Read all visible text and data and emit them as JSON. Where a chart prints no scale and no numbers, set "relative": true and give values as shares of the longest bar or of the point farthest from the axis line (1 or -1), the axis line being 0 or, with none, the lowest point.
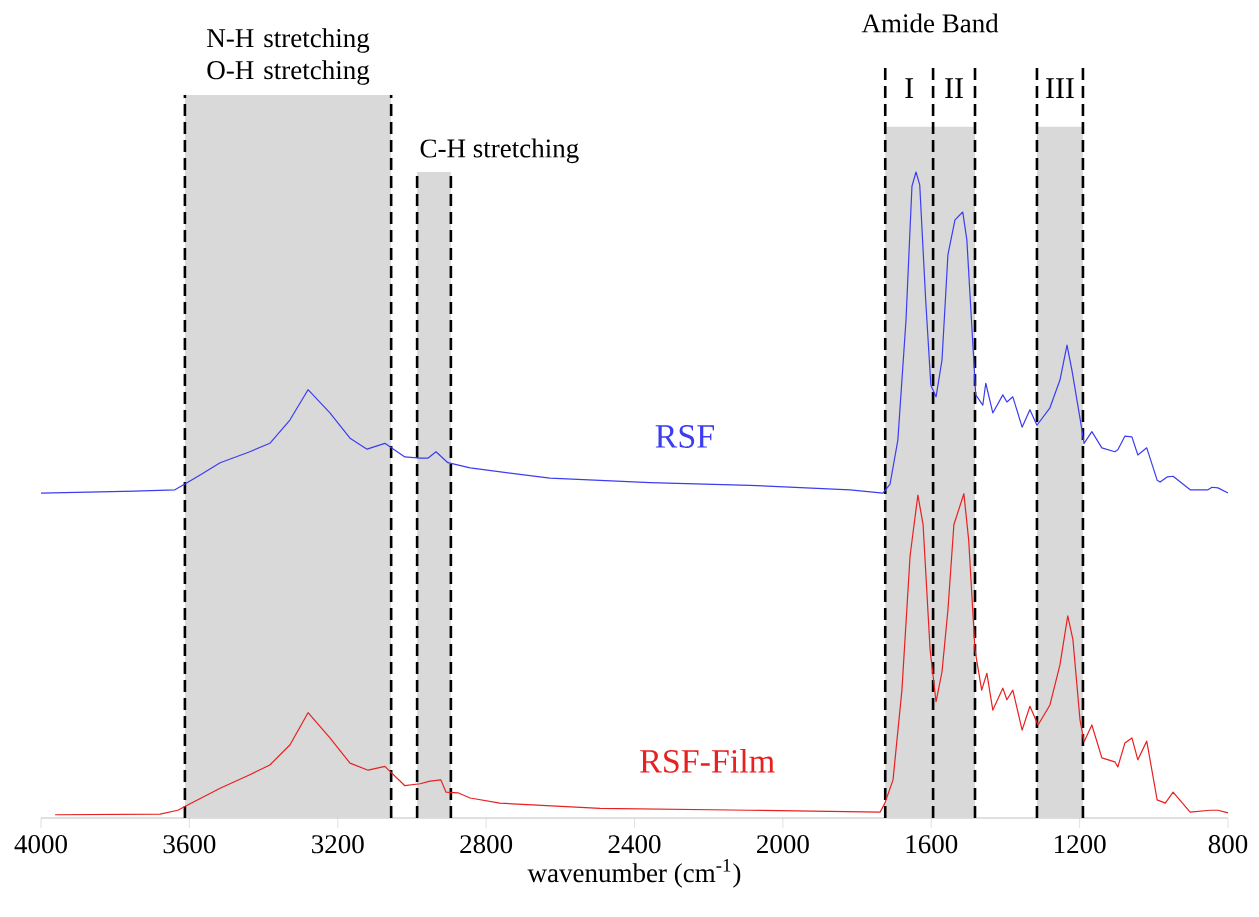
{
  "chart_data": {
    "type": "line",
    "relative": true,
    "xlabel": "wavenumber (cm$^{-1}$)",
    "xlim": [
      4000,
      800
    ],
    "xticks": [
      4000,
      3600,
      3200,
      2800,
      2400,
      2000,
      1600,
      1200,
      800
    ],
    "annotations": [
      "Amide Band"
    ],
    "bands": [
      {
        "axis": "x",
        "from": 3612,
        "to": 3056,
        "label": "N-H stretching O-H stretching",
        "color": "#d9d9d9"
      },
      {
        "axis": "x",
        "from": 2986,
        "to": 2895,
        "label": "C-H stretching",
        "color": "#d9d9d9"
      },
      {
        "axis": "x",
        "from": 1724,
        "to": 1595,
        "label": "I",
        "color": "#d9d9d9"
      },
      {
        "axis": "x",
        "from": 1595,
        "to": 1482,
        "label": "II",
        "color": "#d9d9d9"
      },
      {
        "axis": "x",
        "from": 1315,
        "to": 1191,
        "label": "III",
        "color": "#d9d9d9"
      }
    ],
    "ref_lines": [
      {
        "axis": "x",
        "value": 3612,
        "color": "#000000",
        "line_style": "dashed"
      },
      {
        "axis": "x",
        "value": 3056,
        "color": "#000000",
        "line_style": "dashed"
      },
      {
        "axis": "x",
        "value": 2986,
        "color": "#000000",
        "line_style": "dashed"
      },
      {
        "axis": "x",
        "value": 2895,
        "color": "#000000",
        "line_style": "dashed"
      },
      {
        "axis": "x",
        "value": 1724,
        "color": "#000000",
        "line_style": "dashed"
      },
      {
        "axis": "x",
        "value": 1595,
        "color": "#000000",
        "line_style": "dashed"
      },
      {
        "axis": "x",
        "value": 1482,
        "color": "#000000",
        "line_style": "dashed"
      },
      {
        "axis": "x",
        "value": 1315,
        "color": "#000000",
        "line_style": "dashed"
      },
      {
        "axis": "x",
        "value": 1191,
        "color": "#000000",
        "line_style": "dashed"
      }
    ],
    "series": [
      {
        "name": "RSF",
        "color": "#3c3cf0",
        "x": [
          4000,
          3747,
          3639,
          3612,
          3571,
          3517,
          3437,
          3383,
          3329,
          3280,
          3221,
          3167,
          3121,
          3073,
          3019,
          2978,
          2957,
          2935,
          2903,
          2843,
          2628,
          2358,
          2089,
          1819,
          1730,
          1711,
          1690,
          1668,
          1652,
          1641,
          1631,
          1615,
          1601,
          1587,
          1571,
          1555,
          1536,
          1515,
          1504,
          1490,
          1480,
          1461,
          1453,
          1434,
          1407,
          1396,
          1380,
          1355,
          1334,
          1315,
          1280,
          1253,
          1234,
          1221,
          1199,
          1188,
          1167,
          1140,
          1105,
          1097,
          1078,
          1059,
          1043,
          1019,
          991,
          983,
          964,
          948,
          902,
          854,
          843,
          827,
          800
        ],
        "values": [
          0.503,
          0.506,
          0.508,
          0.517,
          0.531,
          0.55,
          0.567,
          0.58,
          0.616,
          0.663,
          0.627,
          0.588,
          0.571,
          0.58,
          0.559,
          0.557,
          0.557,
          0.567,
          0.55,
          0.542,
          0.526,
          0.519,
          0.515,
          0.508,
          0.503,
          0.517,
          0.585,
          0.771,
          0.978,
          1.0,
          0.98,
          0.802,
          0.67,
          0.652,
          0.709,
          0.872,
          0.926,
          0.938,
          0.895,
          0.755,
          0.655,
          0.639,
          0.673,
          0.627,
          0.655,
          0.644,
          0.652,
          0.605,
          0.632,
          0.608,
          0.635,
          0.678,
          0.732,
          0.694,
          0.619,
          0.58,
          0.598,
          0.573,
          0.567,
          0.57,
          0.591,
          0.59,
          0.562,
          0.573,
          0.523,
          0.52,
          0.528,
          0.529,
          0.508,
          0.508,
          0.512,
          0.511,
          0.503
        ]
      },
      {
        "name": "RSF-Film",
        "color": "#e82020",
        "x": [
          3962,
          3679,
          3631,
          3598,
          3517,
          3437,
          3383,
          3329,
          3280,
          3221,
          3167,
          3118,
          3073,
          3019,
          2978,
          2951,
          2922,
          2908,
          2876,
          2843,
          2763,
          2493,
          2089,
          1738,
          1725,
          1703,
          1679,
          1657,
          1636,
          1622,
          1603,
          1587,
          1571,
          1555,
          1539,
          1512,
          1499,
          1482,
          1464,
          1450,
          1434,
          1407,
          1396,
          1380,
          1355,
          1334,
          1312,
          1280,
          1253,
          1232,
          1218,
          1199,
          1188,
          1167,
          1140,
          1105,
          1097,
          1078,
          1059,
          1043,
          1019,
          991,
          969,
          948,
          902,
          848,
          827,
          800
        ],
        "values": [
          0.005,
          0.006,
          0.012,
          0.022,
          0.046,
          0.067,
          0.082,
          0.113,
          0.163,
          0.124,
          0.085,
          0.074,
          0.08,
          0.05,
          0.053,
          0.057,
          0.059,
          0.04,
          0.039,
          0.031,
          0.023,
          0.015,
          0.012,
          0.009,
          0.023,
          0.059,
          0.198,
          0.406,
          0.5,
          0.454,
          0.26,
          0.18,
          0.226,
          0.322,
          0.454,
          0.502,
          0.43,
          0.26,
          0.198,
          0.224,
          0.167,
          0.201,
          0.183,
          0.198,
          0.136,
          0.173,
          0.144,
          0.175,
          0.237,
          0.313,
          0.276,
          0.152,
          0.118,
          0.144,
          0.093,
          0.087,
          0.079,
          0.116,
          0.124,
          0.09,
          0.119,
          0.028,
          0.023,
          0.04,
          0.009,
          0.012,
          0.012,
          0.008
        ]
      }
    ]
  }
}
